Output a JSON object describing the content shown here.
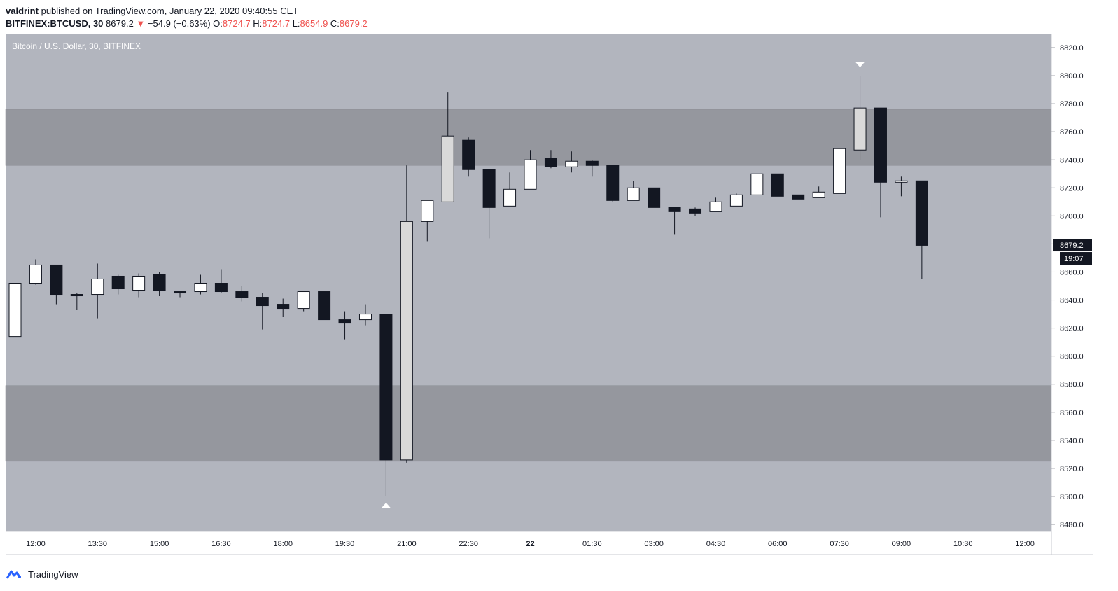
{
  "header": {
    "author": "valdrint",
    "published_text": "published on TradingView.com, January 22, 2020 09:40:55 CET",
    "symbol": "BITFINEX:BTCUSD, 30",
    "last": "8679.2",
    "change": "−54.9 (−0.63%)",
    "o_label": "O:",
    "o_value": "8724.7",
    "h_label": "H:",
    "h_value": "8724.7",
    "l_label": "L:",
    "l_value": "8654.9",
    "c_label": "C:",
    "c_value": "8679.2"
  },
  "footer": {
    "brand": "TradingView"
  },
  "colors": {
    "background": "#b2b5be",
    "zone": "#95979e",
    "up_body": "#ffffff",
    "up_body_alt": "#d9d9d9",
    "down_body": "#131722",
    "wick": "#131722",
    "negative": "#ef5350"
  },
  "chart_data": {
    "type": "candlestick",
    "title": "Bitcoin / U.S. Dollar, 30, BITFINEX",
    "ylim": [
      8475,
      8830
    ],
    "yticks": [
      "8820.0",
      "8800.0",
      "8780.0",
      "8760.0",
      "8740.0",
      "8720.0",
      "8700.0",
      "8680.0",
      "8660.0",
      "8640.0",
      "8620.0",
      "8600.0",
      "8580.0",
      "8560.0",
      "8540.0",
      "8520.0",
      "8500.0",
      "8480.0"
    ],
    "xticks": [
      {
        "label": "12:00",
        "index": 1
      },
      {
        "label": "13:30",
        "index": 4
      },
      {
        "label": "15:00",
        "index": 7
      },
      {
        "label": "16:30",
        "index": 10
      },
      {
        "label": "18:00",
        "index": 13
      },
      {
        "label": "19:30",
        "index": 16
      },
      {
        "label": "21:00",
        "index": 19
      },
      {
        "label": "22:30",
        "index": 22
      },
      {
        "label": "22",
        "index": 25
      },
      {
        "label": "01:30",
        "index": 28
      },
      {
        "label": "03:00",
        "index": 31
      },
      {
        "label": "04:30",
        "index": 34
      },
      {
        "label": "06:00",
        "index": 37
      },
      {
        "label": "07:30",
        "index": 40
      },
      {
        "label": "09:00",
        "index": 43
      },
      {
        "label": "10:30",
        "index": 46
      },
      {
        "label": "12:00",
        "index": 49
      }
    ],
    "zones": [
      {
        "from": 8736,
        "to": 8776
      },
      {
        "from": 8525,
        "to": 8579
      }
    ],
    "candles": [
      {
        "o": 8614,
        "h": 8659,
        "l": 8614,
        "c": 8652
      },
      {
        "o": 8652,
        "h": 8669,
        "l": 8651,
        "c": 8665
      },
      {
        "o": 8665,
        "h": 8665,
        "l": 8637,
        "c": 8644
      },
      {
        "o": 8644,
        "h": 8645,
        "l": 8633,
        "c": 8643
      },
      {
        "o": 8644,
        "h": 8666,
        "l": 8627,
        "c": 8655
      },
      {
        "o": 8657,
        "h": 8658,
        "l": 8644,
        "c": 8648
      },
      {
        "o": 8647,
        "h": 8659,
        "l": 8642,
        "c": 8657
      },
      {
        "o": 8658,
        "h": 8660,
        "l": 8643,
        "c": 8647
      },
      {
        "o": 8646,
        "h": 8646,
        "l": 8642,
        "c": 8645
      },
      {
        "o": 8646,
        "h": 8658,
        "l": 8644,
        "c": 8652
      },
      {
        "o": 8652,
        "h": 8662,
        "l": 8645,
        "c": 8646
      },
      {
        "o": 8646,
        "h": 8650,
        "l": 8639,
        "c": 8642
      },
      {
        "o": 8642,
        "h": 8645,
        "l": 8619,
        "c": 8636
      },
      {
        "o": 8637,
        "h": 8641,
        "l": 8628,
        "c": 8634
      },
      {
        "o": 8634,
        "h": 8646,
        "l": 8632,
        "c": 8646
      },
      {
        "o": 8646,
        "h": 8646,
        "l": 8626,
        "c": 8626
      },
      {
        "o": 8626,
        "h": 8632,
        "l": 8612,
        "c": 8624
      },
      {
        "o": 8626,
        "h": 8637,
        "l": 8622,
        "c": 8630
      },
      {
        "o": 8630,
        "h": 8630,
        "l": 8500,
        "c": 8526
      },
      {
        "o": 8526,
        "h": 8736,
        "l": 8524,
        "c": 8696
      },
      {
        "o": 8696,
        "h": 8711,
        "l": 8682,
        "c": 8711
      },
      {
        "o": 8710,
        "h": 8788,
        "l": 8710,
        "c": 8757
      },
      {
        "o": 8754,
        "h": 8756,
        "l": 8728,
        "c": 8733
      },
      {
        "o": 8733,
        "h": 8733,
        "l": 8684,
        "c": 8706
      },
      {
        "o": 8707,
        "h": 8731,
        "l": 8707,
        "c": 8719
      },
      {
        "o": 8719,
        "h": 8747,
        "l": 8719,
        "c": 8740
      },
      {
        "o": 8741,
        "h": 8747,
        "l": 8734,
        "c": 8735
      },
      {
        "o": 8735,
        "h": 8746,
        "l": 8731,
        "c": 8739
      },
      {
        "o": 8739,
        "h": 8740,
        "l": 8728,
        "c": 8736
      },
      {
        "o": 8736,
        "h": 8736,
        "l": 8710,
        "c": 8711
      },
      {
        "o": 8711,
        "h": 8725,
        "l": 8711,
        "c": 8720
      },
      {
        "o": 8720,
        "h": 8720,
        "l": 8706,
        "c": 8706
      },
      {
        "o": 8706,
        "h": 8706,
        "l": 8687,
        "c": 8703
      },
      {
        "o": 8705,
        "h": 8706,
        "l": 8700,
        "c": 8702
      },
      {
        "o": 8703,
        "h": 8713,
        "l": 8703,
        "c": 8710
      },
      {
        "o": 8707,
        "h": 8716,
        "l": 8707,
        "c": 8715
      },
      {
        "o": 8715,
        "h": 8730,
        "l": 8715,
        "c": 8730
      },
      {
        "o": 8730,
        "h": 8730,
        "l": 8714,
        "c": 8714
      },
      {
        "o": 8715,
        "h": 8715,
        "l": 8712,
        "c": 8712
      },
      {
        "o": 8713,
        "h": 8721,
        "l": 8713,
        "c": 8717
      },
      {
        "o": 8716,
        "h": 8748,
        "l": 8716,
        "c": 8748
      },
      {
        "o": 8747,
        "h": 8800,
        "l": 8740,
        "c": 8777
      },
      {
        "o": 8777,
        "h": 8777,
        "l": 8699,
        "c": 8724
      },
      {
        "o": 8724,
        "h": 8728,
        "l": 8714,
        "c": 8725
      },
      {
        "o": 8725,
        "h": 8725,
        "l": 8655,
        "c": 8679
      }
    ],
    "markers": [
      {
        "index": 18,
        "price": 8500,
        "position": "below"
      },
      {
        "index": 41,
        "price": 8800,
        "position": "above"
      }
    ],
    "last_price": "8679.2",
    "last_price_value": 8679.2,
    "countdown": "19:07"
  }
}
